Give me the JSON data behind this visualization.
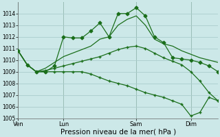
{
  "background_color": "#cce8e8",
  "grid_color": "#aacccc",
  "line_color": "#1a6e1a",
  "xlabel": "Pression niveau de la mer( hPa )",
  "xlabel_fontsize": 7.5,
  "ylim": [
    1005,
    1015
  ],
  "yticks": [
    1005,
    1006,
    1007,
    1008,
    1009,
    1010,
    1011,
    1012,
    1013,
    1014
  ],
  "ytick_fontsize": 5.5,
  "xtick_labels": [
    "Ven",
    "Lun",
    "Sam",
    "Dim"
  ],
  "xtick_positions": [
    0,
    5,
    13,
    19
  ],
  "vline_positions": [
    0,
    5,
    13,
    19
  ],
  "xtick_fontsize": 6.0,
  "series": [
    [
      1010.8,
      1009.6,
      1009.0,
      1009.0,
      1009.5,
      1012.0,
      1011.9,
      1011.9,
      1012.5,
      1013.2,
      1012.0,
      1014.0,
      1014.0,
      1014.5,
      1013.8,
      1012.0,
      1011.5,
      1010.2,
      1010.1,
      1010.0,
      1009.8,
      1009.5,
      1009.0
    ],
    [
      1010.8,
      1009.6,
      1009.0,
      1009.3,
      1009.8,
      1010.3,
      1010.6,
      1010.9,
      1011.2,
      1011.8,
      1012.0,
      1013.0,
      1013.5,
      1013.8,
      1013.0,
      1011.8,
      1011.4,
      1011.2,
      1010.8,
      1010.5,
      1010.2,
      1010.0,
      1009.8
    ],
    [
      1010.8,
      1009.6,
      1009.0,
      1009.1,
      1009.3,
      1009.5,
      1009.7,
      1009.9,
      1010.1,
      1010.3,
      1010.6,
      1010.9,
      1011.1,
      1011.2,
      1011.0,
      1010.6,
      1010.2,
      1009.9,
      1009.6,
      1009.0,
      1008.2,
      1007.2,
      1006.5
    ],
    [
      1010.8,
      1009.6,
      1009.0,
      1009.0,
      1009.0,
      1009.0,
      1009.0,
      1009.0,
      1008.8,
      1008.5,
      1008.2,
      1008.0,
      1007.8,
      1007.5,
      1007.2,
      1007.0,
      1006.8,
      1006.5,
      1006.2,
      1005.2,
      1005.5,
      1006.8,
      1006.5
    ]
  ],
  "markers": [
    "D",
    null,
    "+",
    "+"
  ],
  "markersizes": [
    2.5,
    0,
    2.5,
    2.5
  ],
  "linewidths": [
    0.9,
    0.9,
    0.9,
    0.9
  ]
}
